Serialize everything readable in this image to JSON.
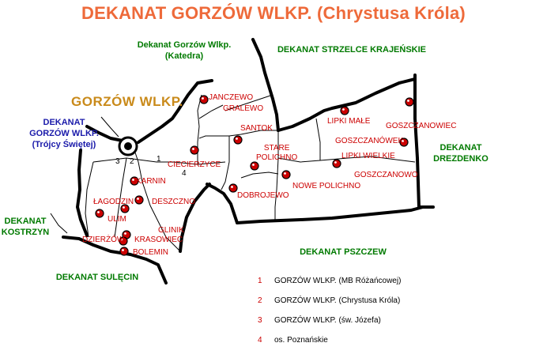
{
  "title": "DEKANAT GORZÓW WLKP. (Chrystusa Króla)",
  "city_label": "GORZÓW  WLKP.",
  "neighbors": {
    "katedra_line1": "Dekanat Gorzów Wlkp.",
    "katedra_line2": "(Katedra)",
    "strzelce": "DEKANAT STRZELCE KRAJEŃSKIE",
    "trojcy_line1": "DEKANAT",
    "trojcy_line2": "GORZÓW WLKP.",
    "trojcy_line3": "(Trójcy Świętej)",
    "drezdenko_line1": "DEKANAT",
    "drezdenko_line2": "DREZDENKO",
    "kostrzyn_line1": "DEKANAT",
    "kostrzyn_line2": "KOSTRZYN",
    "pszczew": "DEKANAT PSZCZEW",
    "sulecin": "DEKANAT SULĘCIN"
  },
  "places": {
    "janczewo": "JANCZEWO",
    "gralewo": "GRALEWO",
    "santok": "SANTOK",
    "stare_line1": "STARE",
    "stare_line2": "POLICHNO",
    "lipki_male": "LIPKI MAŁE",
    "goszczanowiec": "GOSZCZANOWIEC",
    "goszczanowek": "GOSZCZANÓWEK",
    "lipki_wielkie": "LIPKI WIELKIE",
    "goszczanowo": "GOSZCZANOWO",
    "nowe_polichno": "NOWE POLICHNO",
    "dobrojewo": "DOBROJEWO",
    "cieciersyce": "CIECIERZYCE",
    "karnin": "KARNIN",
    "deszczno": "DESZCZNO",
    "lagodzin": "ŁAGODZIN",
    "ulim": "ULIM",
    "glinik": "GLINIK",
    "dzierzow": "DZIERŻÓW",
    "krasowiec": "KRASOWIEC",
    "bolemin": "BOLEMIN"
  },
  "city_numbers": [
    "3",
    "2",
    "1",
    "4"
  ],
  "legend": [
    {
      "num": "1",
      "text": "GORZÓW WLKP. (MB Różańcowej)"
    },
    {
      "num": "2",
      "text": "GORZÓW WLKP. (Chrystusa Króla)"
    },
    {
      "num": "3",
      "text": "GORZÓW WLKP. (św. Józefa)"
    },
    {
      "num": "4",
      "text": "os. Poznańskie"
    }
  ],
  "colors": {
    "title": "#ee6a3a",
    "neighbor_green": "#007a00",
    "neighbor_blue": "#1a1aaa",
    "city": "#c98a1a",
    "place": "#cc0000",
    "marker": "#cc0000"
  }
}
